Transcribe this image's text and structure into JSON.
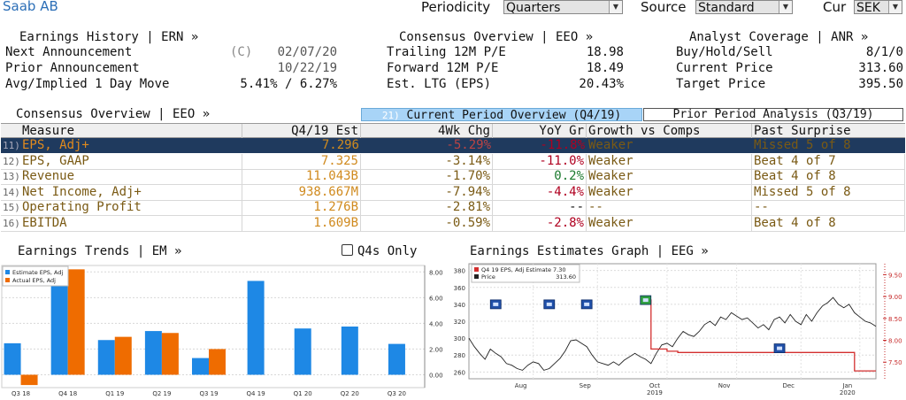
{
  "header": {
    "title": "Saab AB",
    "periodicity_label": "Periodicity",
    "periodicity_value": "Quarters",
    "source_label": "Source",
    "source_value": "Standard",
    "cur_label": "Cur",
    "cur_value": "SEK"
  },
  "earnings_history": {
    "title": "Earnings History | ERN »",
    "rows": [
      {
        "label": "Next Announcement",
        "flag": "(C)",
        "value": "02/07/20"
      },
      {
        "label": "Prior Announcement",
        "flag": "",
        "value": "10/22/19"
      },
      {
        "label": "Avg/Implied 1 Day Move",
        "flag": "",
        "value": "5.41% / 6.27%"
      }
    ]
  },
  "consensus_overview_top": {
    "title": "Consensus Overview | EEO »",
    "rows": [
      {
        "label": "Trailing 12M P/E",
        "value": "18.98"
      },
      {
        "label": "Forward 12M P/E",
        "value": "18.49"
      },
      {
        "label": "Est. LTG (EPS)",
        "value": "20.43%"
      }
    ]
  },
  "analyst_coverage": {
    "title": "Analyst Coverage | ANR »",
    "rows": [
      {
        "label": "Buy/Hold/Sell",
        "value": "8/1/0"
      },
      {
        "label": "Current Price",
        "value": "313.60"
      },
      {
        "label": "Target Price",
        "value": "395.50"
      }
    ]
  },
  "consensus_table": {
    "title": "Consensus Overview | EEO »",
    "tab_current_num": "21)",
    "tab_current": "Current Period Overview (Q4/19)",
    "tab_prior": "Prior Period Analysis (Q3/19)",
    "columns": [
      "Measure",
      "Q4/19 Est",
      "4Wk Chg",
      "YoY Gr",
      "Growth vs Comps",
      "Past Surprise"
    ],
    "rows": [
      {
        "num": "11)",
        "measure": "EPS, Adj+",
        "est": "7.296",
        "chg": "-5.29%",
        "yoy": "-11.8%",
        "growth": "Weaker",
        "surprise": "Missed 5 of 8"
      },
      {
        "num": "12)",
        "measure": "EPS, GAAP",
        "est": "7.325",
        "chg": "-3.14%",
        "yoy": "-11.0%",
        "growth": "Weaker",
        "surprise": "Beat 4 of 7"
      },
      {
        "num": "13)",
        "measure": "Revenue",
        "est": "11.043B",
        "chg": "-1.70%",
        "yoy": "0.2%",
        "growth": "Weaker",
        "surprise": "Beat 4 of 8"
      },
      {
        "num": "14)",
        "measure": "Net Income, Adj+",
        "est": "938.667M",
        "chg": "-7.94%",
        "yoy": "-4.4%",
        "growth": "Weaker",
        "surprise": "Missed 5 of 8"
      },
      {
        "num": "15)",
        "measure": "Operating Profit",
        "est": "1.276B",
        "chg": "-2.81%",
        "yoy": "--",
        "growth": "--",
        "surprise": "--"
      },
      {
        "num": "16)",
        "measure": "EBITDA",
        "est": "1.609B",
        "chg": "-0.59%",
        "yoy": "-2.8%",
        "growth": "Weaker",
        "surprise": "Beat 4 of 8"
      }
    ]
  },
  "earnings_trends": {
    "title": "Earnings Trends | EM »",
    "q4s_only_label": "Q4s Only"
  },
  "estimates_graph": {
    "title": "Earnings Estimates Graph | EEG »"
  },
  "colors": {
    "estimate_bar": "#1e88e5",
    "actual_bar": "#ef6c00",
    "estimate_line": "#d32f2f",
    "price_line": "#222222",
    "selected_row": "#1f3a5e",
    "tab_active": "#a8d4f7",
    "positive": "#1b7a2e",
    "negative": "#b00020",
    "value_text": "#d08a1e",
    "growth_text": "#7a5a14"
  },
  "chart_data": [
    {
      "type": "bar",
      "categories": [
        "Q3 18",
        "Q4 18",
        "Q1 19",
        "Q2 19",
        "Q3 19",
        "Q4 19",
        "Q1 20",
        "Q2 20",
        "Q3 20"
      ],
      "series": [
        {
          "name": "Estimate EPS, Adj",
          "values": [
            2.45,
            8.2,
            2.7,
            3.4,
            1.3,
            7.3,
            3.6,
            3.75,
            2.4
          ]
        },
        {
          "name": "Actual EPS, Adj",
          "values": [
            -0.8,
            8.2,
            2.95,
            3.25,
            2.0,
            null,
            null,
            null,
            null
          ]
        }
      ],
      "ylim": [
        -1,
        8.5
      ],
      "yticks": [
        0.0,
        2.0,
        4.0,
        6.0,
        8.0
      ],
      "ytick_labels": [
        "0.00",
        "2.00",
        "4.00",
        "6.00",
        "8.00"
      ],
      "legend_placement": "top-left"
    },
    {
      "type": "line",
      "legend": [
        {
          "name": "Q4 19 EPS, Adj Estimate",
          "value": "7.30"
        },
        {
          "name": "Price",
          "value": "313.60"
        }
      ],
      "x_labels": [
        "Aug",
        "Sep",
        "Oct",
        "Nov",
        "Dec",
        "Jan"
      ],
      "x_sublabels": [
        "",
        "",
        "2019",
        "",
        "",
        "2020"
      ],
      "y_left_ticks": [
        "260",
        "280",
        "300",
        "320",
        "340",
        "360",
        "380"
      ],
      "y_left_range": [
        252,
        388
      ],
      "y_right_ticks": [
        "7.50",
        "8.00",
        "8.50",
        "9.00",
        "9.50"
      ],
      "y_right_range": [
        7.12,
        9.75
      ],
      "price_series": [
        300,
        290,
        282,
        275,
        287,
        282,
        278,
        270,
        268,
        264,
        262,
        268,
        272,
        270,
        262,
        264,
        270,
        276,
        285,
        297,
        298,
        294,
        290,
        280,
        272,
        270,
        268,
        272,
        268,
        274,
        278,
        282,
        278,
        275,
        270,
        282,
        292,
        294,
        290,
        300,
        308,
        304,
        302,
        308,
        316,
        320,
        315,
        325,
        322,
        330,
        326,
        322,
        324,
        318,
        312,
        316,
        310,
        322,
        325,
        318,
        328,
        320,
        316,
        328,
        320,
        330,
        338,
        342,
        348,
        340,
        336,
        340,
        330,
        325,
        320,
        318,
        314
      ],
      "estimate_series": [
        null,
        null,
        null,
        null,
        null,
        null,
        null,
        null,
        null,
        null,
        null,
        null,
        null,
        null,
        null,
        null,
        null,
        null,
        null,
        null,
        null,
        null,
        null,
        null,
        null,
        null,
        null,
        null,
        null,
        null,
        null,
        null,
        8.92,
        8.92,
        7.8,
        7.8,
        7.8,
        7.75,
        7.75,
        7.72,
        7.72,
        7.72,
        7.72,
        7.72,
        7.72,
        7.72,
        7.72,
        7.72,
        7.72,
        7.72,
        7.72,
        7.72,
        7.72,
        7.72,
        7.72,
        7.72,
        7.72,
        7.72,
        7.72,
        7.72,
        7.72,
        7.72,
        7.72,
        7.72,
        7.72,
        7.72,
        7.72,
        7.72,
        7.72,
        7.72,
        7.72,
        7.72,
        7.3,
        7.3,
        7.3,
        7.3,
        7.3
      ],
      "event_markers": [
        {
          "type": "blue",
          "x_index": 5,
          "y": 340
        },
        {
          "type": "blue",
          "x_index": 15,
          "y": 340
        },
        {
          "type": "blue",
          "x_index": 22,
          "y": 340
        },
        {
          "type": "green",
          "x_index": 33,
          "y": 345
        },
        {
          "type": "blue",
          "x_index": 58,
          "y": 288
        }
      ]
    }
  ]
}
